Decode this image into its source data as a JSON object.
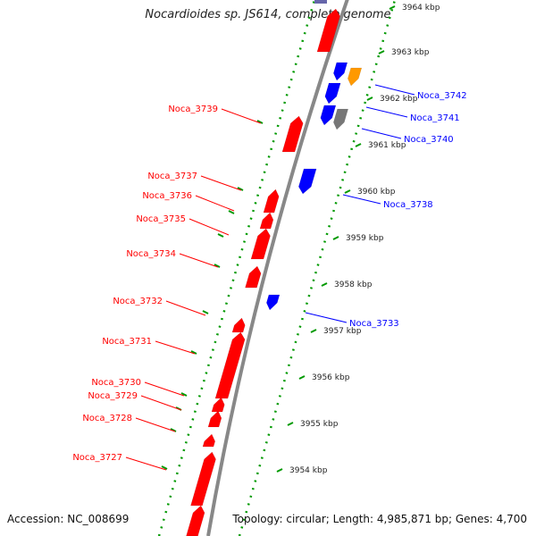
{
  "title": "Nocardioides sp. JS614, complete genome",
  "footer": {
    "accession": "Accession: NC_008699",
    "summary": "Topology: circular; Length: 4,985,871 bp; Genes: 4,700"
  },
  "colors": {
    "reverse_strand": "#ff0000",
    "forward_strand": "#0000ff",
    "orange_feature": "#ff9900",
    "gray_feature": "#777777",
    "backbone": "#888888",
    "ruler": "#009900"
  },
  "kbp_ticks": [
    "3964 kbp",
    "3963 kbp",
    "3962 kbp",
    "3961 kbp",
    "3960 kbp",
    "3959 kbp",
    "3958 kbp",
    "3957 kbp",
    "3956 kbp",
    "3955 kbp",
    "3954 kbp"
  ],
  "reverse_genes": [
    "Noca_3739",
    "Noca_3737",
    "Noca_3736",
    "Noca_3735",
    "Noca_3734",
    "Noca_3732",
    "Noca_3731",
    "Noca_3730",
    "Noca_3729",
    "Noca_3728",
    "Noca_3727"
  ],
  "forward_genes": [
    "Noca_3742",
    "Noca_3741",
    "Noca_3740",
    "Noca_3738",
    "Noca_3733"
  ]
}
